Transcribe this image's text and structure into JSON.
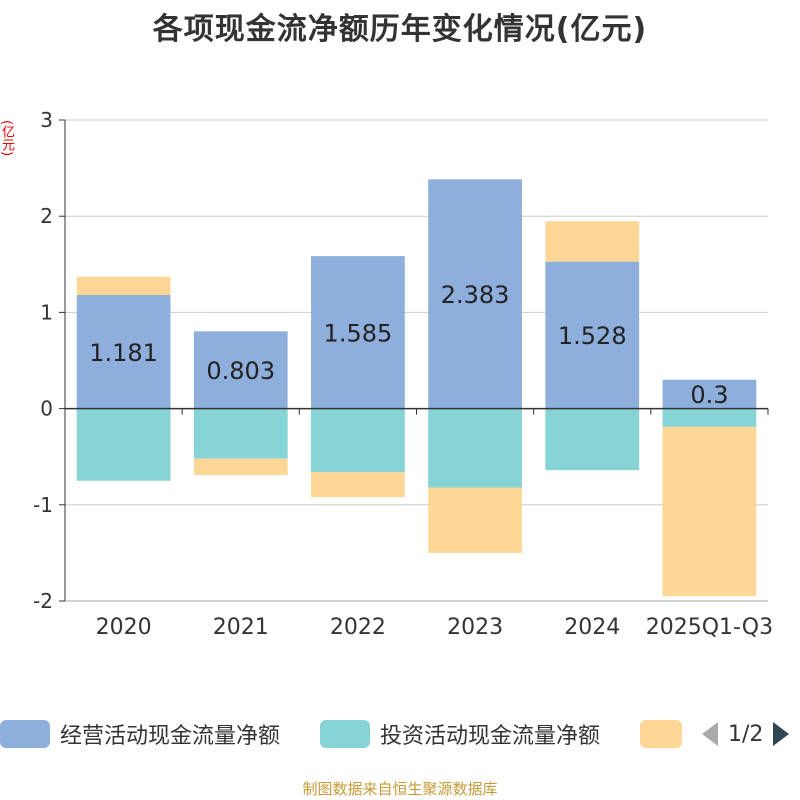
{
  "title": "各项现金流净额历年变化情况(亿元)",
  "unit_label": "(亿元)",
  "source": "制图数据来自恒生聚源数据库",
  "legend": {
    "items": [
      {
        "label": "经营活动现金流量净额",
        "color": "#8eaedb"
      },
      {
        "label": "投资活动现金流量净额",
        "color": "#86d4d6"
      },
      {
        "label": "",
        "color": "#fed796"
      }
    ],
    "page": "1/2",
    "prev_color": "#aaaaaa",
    "next_color": "#2f4554"
  },
  "chart_data": {
    "type": "bar",
    "stacked": true,
    "categories": [
      "2020",
      "2021",
      "2022",
      "2023",
      "2024",
      "2025Q1-Q3"
    ],
    "series": [
      {
        "name": "经营活动现金流量净额",
        "values": [
          1.181,
          0.803,
          1.585,
          2.383,
          1.528,
          0.3
        ],
        "show_labels": true,
        "color": "#8eaedb"
      },
      {
        "name": "投资活动现金流量净额",
        "values": [
          -0.75,
          -0.52,
          -0.66,
          -0.82,
          -0.64,
          -0.19
        ],
        "show_labels": false,
        "color": "#86d4d6"
      },
      {
        "name": "",
        "values": [
          0.19,
          -0.17,
          -0.26,
          -0.68,
          0.42,
          -1.76
        ],
        "show_labels": false,
        "color": "#fed796"
      }
    ],
    "ylim": [
      -2,
      3
    ],
    "yticks": [
      -2,
      -1,
      0,
      1,
      2,
      3
    ],
    "grid": true,
    "xlabel": "",
    "ylabel": "(亿元)"
  }
}
